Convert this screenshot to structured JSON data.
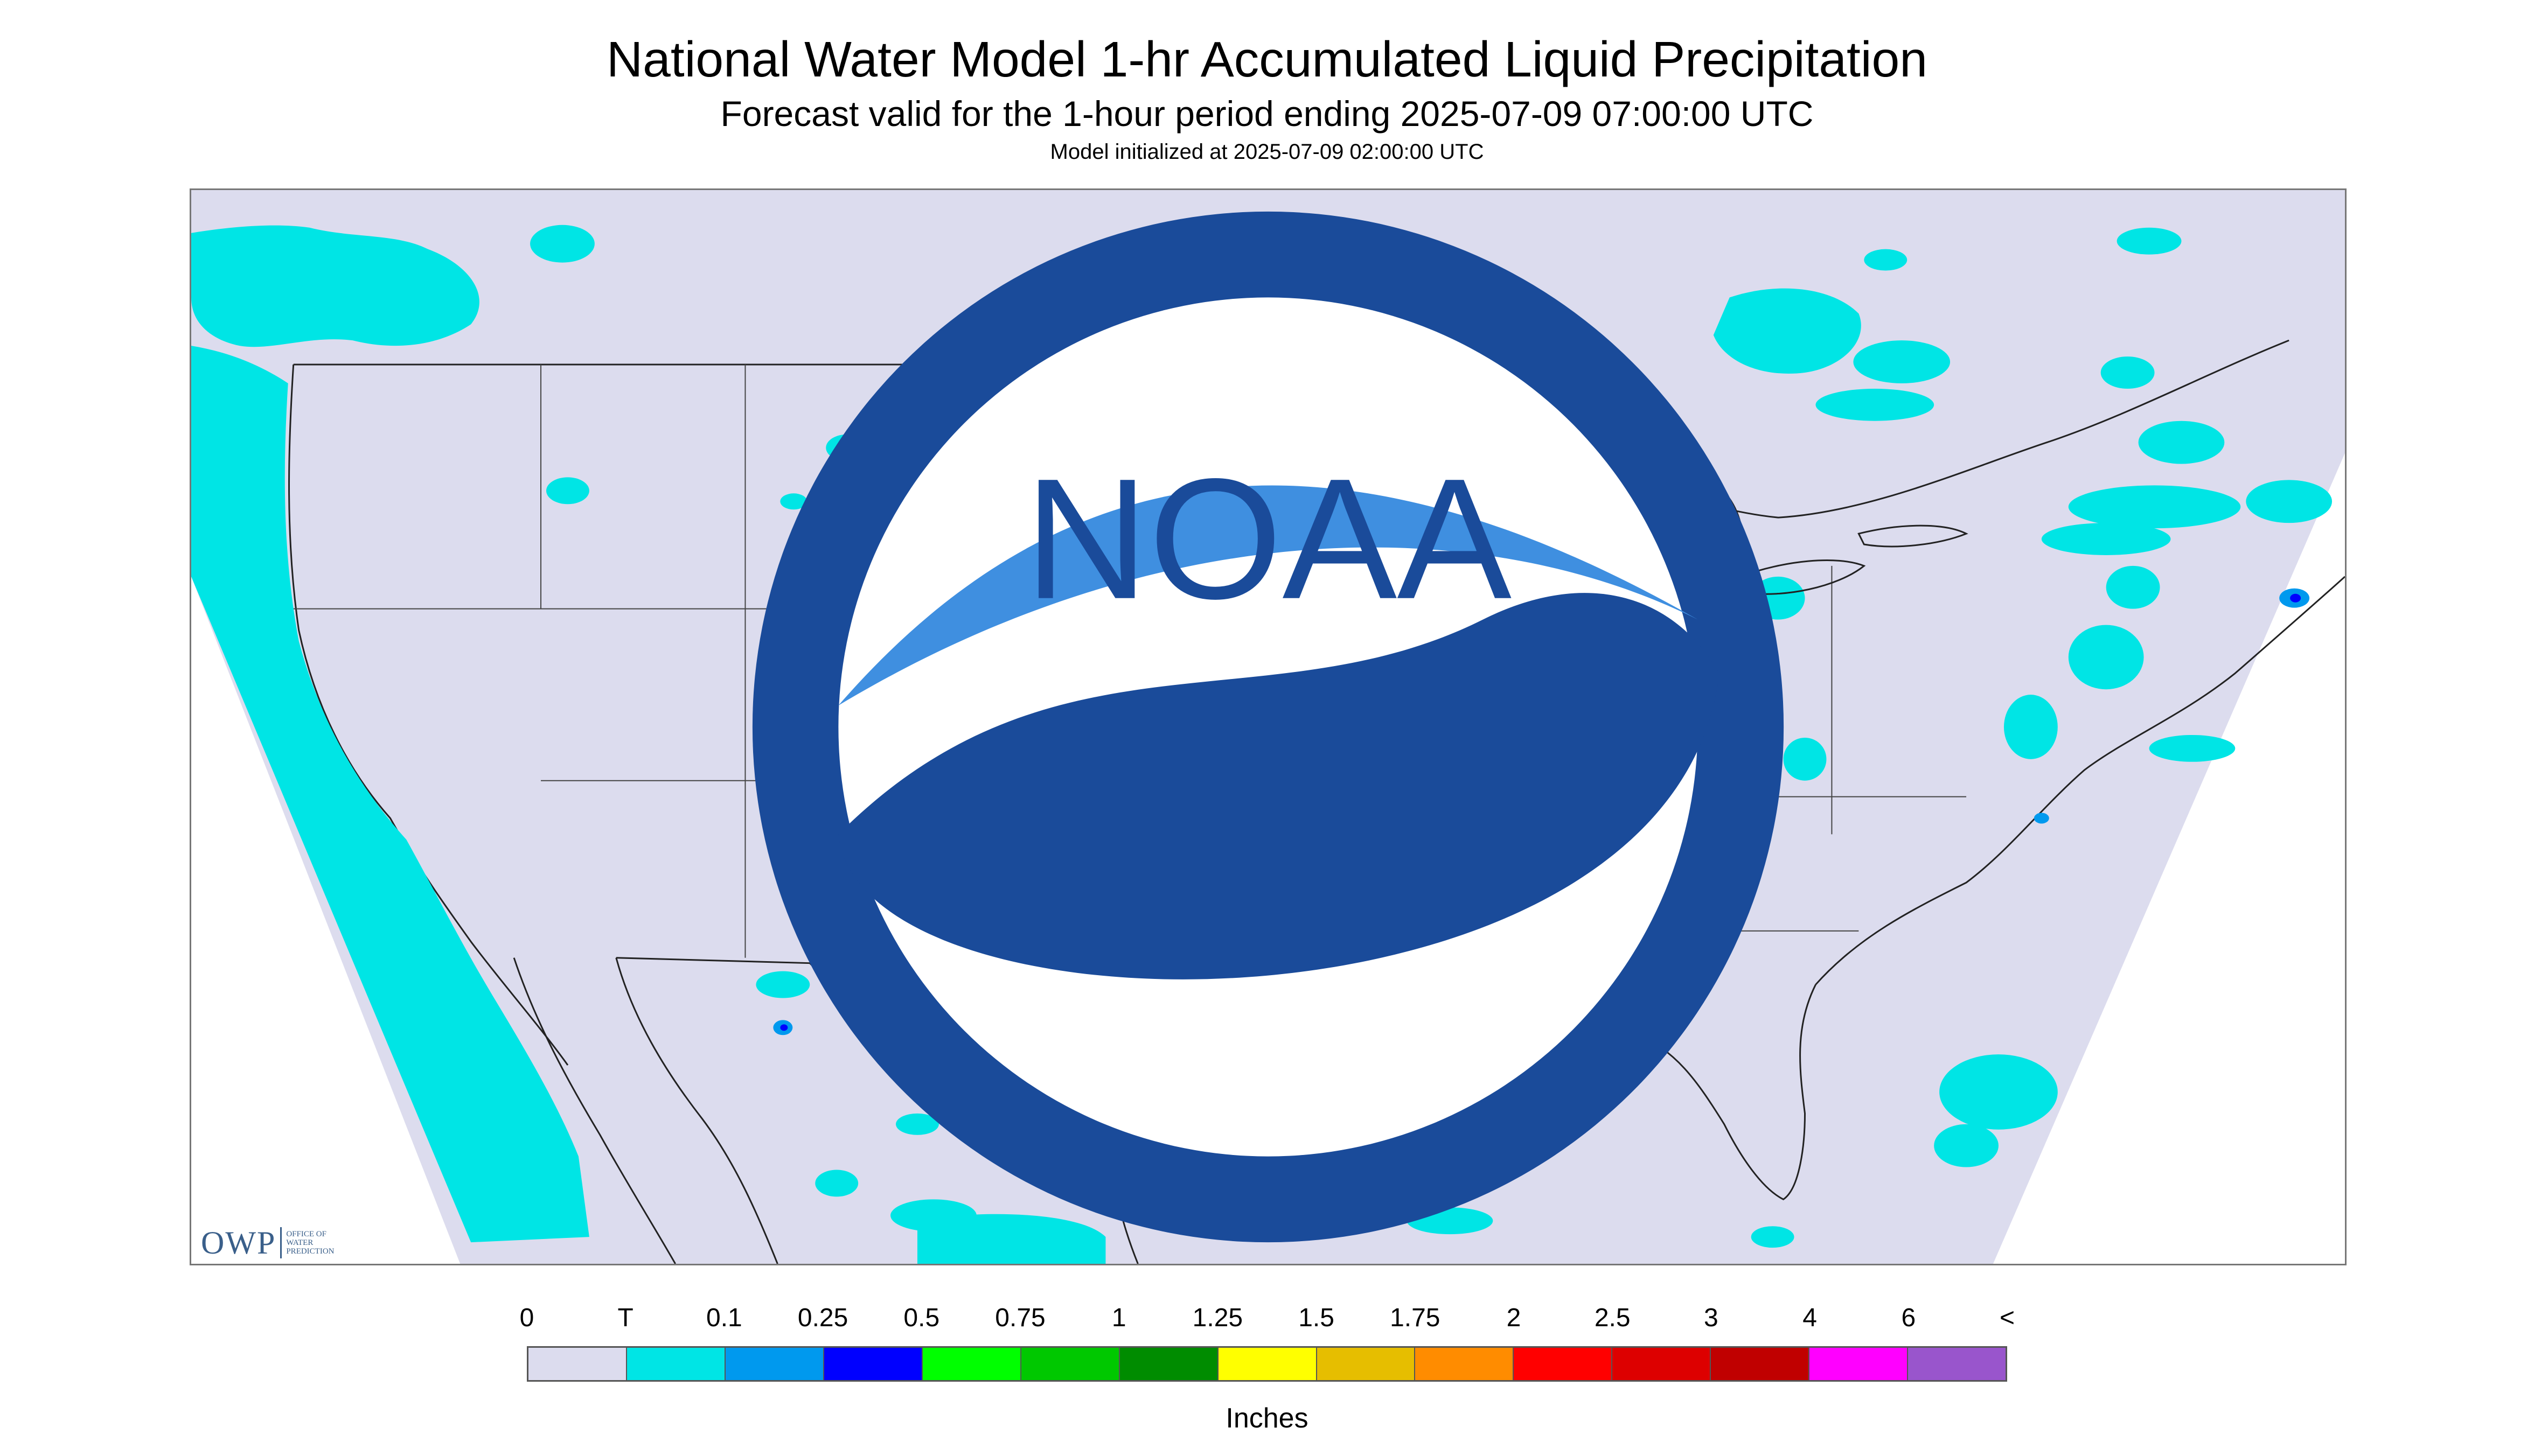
{
  "header": {
    "title": "National Water Model 1-hr Accumulated Liquid Precipitation",
    "subtitle": "Forecast valid for the 1-hour period ending 2025-07-09 07:00:00 UTC",
    "init_line": "Model initialized at 2025-07-09 02:00:00 UTC"
  },
  "map": {
    "domain_fill": "#dcdcee",
    "outside_fill": "#ffffff",
    "boundary_color": "#222222",
    "precip_color": "#00e5e5",
    "heavy_color": "#0000ff",
    "moderate_color": "#0099ee"
  },
  "logos": {
    "owp_abbrev": "OWP",
    "owp_line1": "Office of",
    "owp_line2": "Water",
    "owp_line3": "Prediction",
    "noaa_text": "NOAA"
  },
  "legend": {
    "labels": [
      "0",
      "T",
      "0.1",
      "0.25",
      "0.5",
      "0.75",
      "1",
      "1.25",
      "1.5",
      "1.75",
      "2",
      "2.5",
      "3",
      "4",
      "6",
      "<"
    ],
    "colors": [
      "#dcdcee",
      "#00e5e5",
      "#0099ee",
      "#0000ff",
      "#00ff00",
      "#00c800",
      "#008c00",
      "#ffff00",
      "#e6be00",
      "#ff8c00",
      "#ff0000",
      "#dd0000",
      "#c00000",
      "#ff00ff",
      "#9955cc"
    ],
    "units": "Inches"
  }
}
